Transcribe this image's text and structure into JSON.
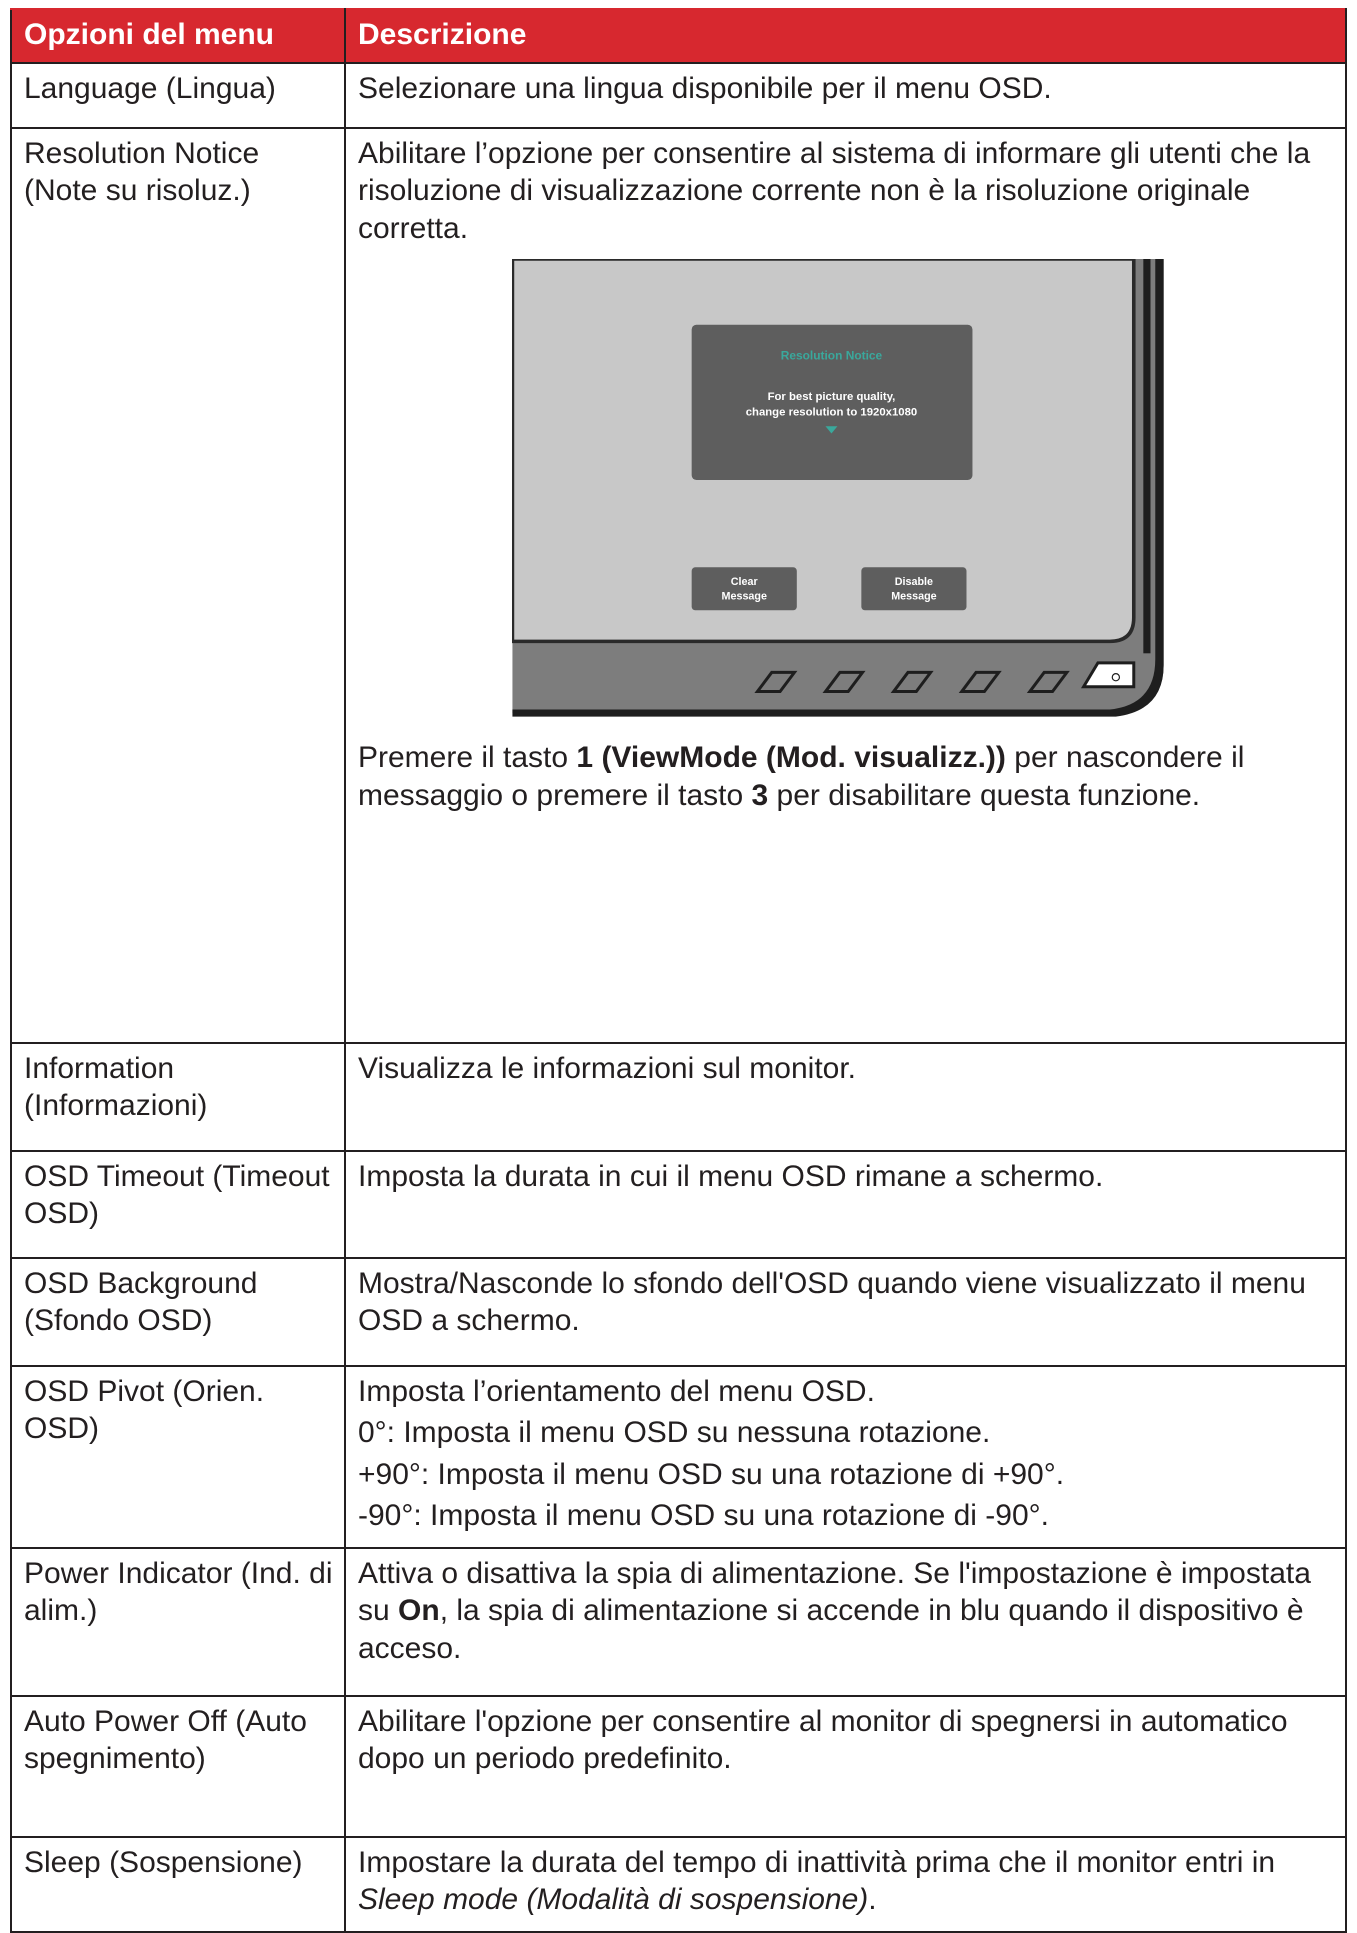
{
  "table": {
    "columns": [
      "Opzioni del menu",
      "Descrizione"
    ],
    "rows": [
      {
        "option": "Language (Lingua)",
        "description": [
          [
            "Selezionare una lingua disponibile per il menu OSD."
          ]
        ]
      },
      {
        "option": "Resolution Notice (Note su risoluz.)",
        "description": [
          [
            "Abilitare l’opzione per consentire al sistema di informare gli utenti che la risoluzione di visualizzazione corrente non è la risoluzione originale corretta."
          ]
        ],
        "figure": {
          "title": "Resolution Notice",
          "message": [
            "For best picture quality,",
            "change resolution to 1920x1080"
          ],
          "buttons": [
            [
              "Clear",
              "Message"
            ],
            [
              "Disable",
              "Message"
            ]
          ]
        },
        "note": [
          [
            "Premere il tasto ",
            {
              "bold": "1 (ViewMode (Mod. visualizz.))"
            },
            " per nascondere il messaggio o premere il tasto ",
            {
              "bold": "3"
            },
            " per disabilitare questa funzione."
          ]
        ]
      },
      {
        "option": "Information (Informazioni)",
        "description": [
          [
            "Visualizza le informazioni sul monitor."
          ]
        ]
      },
      {
        "option": "OSD Timeout (Timeout OSD)",
        "description": [
          [
            "Imposta la durata in cui il menu OSD rimane a schermo."
          ]
        ]
      },
      {
        "option": "OSD Background (Sfondo OSD)",
        "description": [
          [
            "Mostra/Nasconde lo sfondo dell'OSD quando viene visualizzato il menu OSD a schermo."
          ]
        ]
      },
      {
        "option": "OSD Pivot (Orien. OSD)",
        "description": [
          [
            "Imposta l’orientamento del menu OSD."
          ],
          [
            "0°: Imposta il menu OSD su nessuna rotazione."
          ],
          [
            "+90°: Imposta il menu OSD su una rotazione di +90°."
          ],
          [
            "-90°: Imposta il menu OSD su una rotazione di -90°."
          ]
        ]
      },
      {
        "option": "Power Indicator (Ind. di alim.)",
        "description": [
          [
            "Attiva o disattiva la spia di alimentazione. Se l'impostazione è impostata su ",
            {
              "bold": "On"
            },
            ", la spia di alimentazione si accende in blu quando il dispositivo è acceso."
          ]
        ]
      },
      {
        "option": "Auto Power Off (Auto spegnimento)",
        "description": [
          [
            "Abilitare l'opzione per consentire al monitor di spegnersi in automatico dopo un periodo predefinito."
          ]
        ]
      },
      {
        "option": "Sleep (Sospensione)",
        "description": [
          [
            "Impostare la durata del tempo di inattività prima che il monitor entri in ",
            {
              "italic": "Sleep mode (Modalità di sospensione)"
            },
            "."
          ]
        ]
      }
    ]
  }
}
